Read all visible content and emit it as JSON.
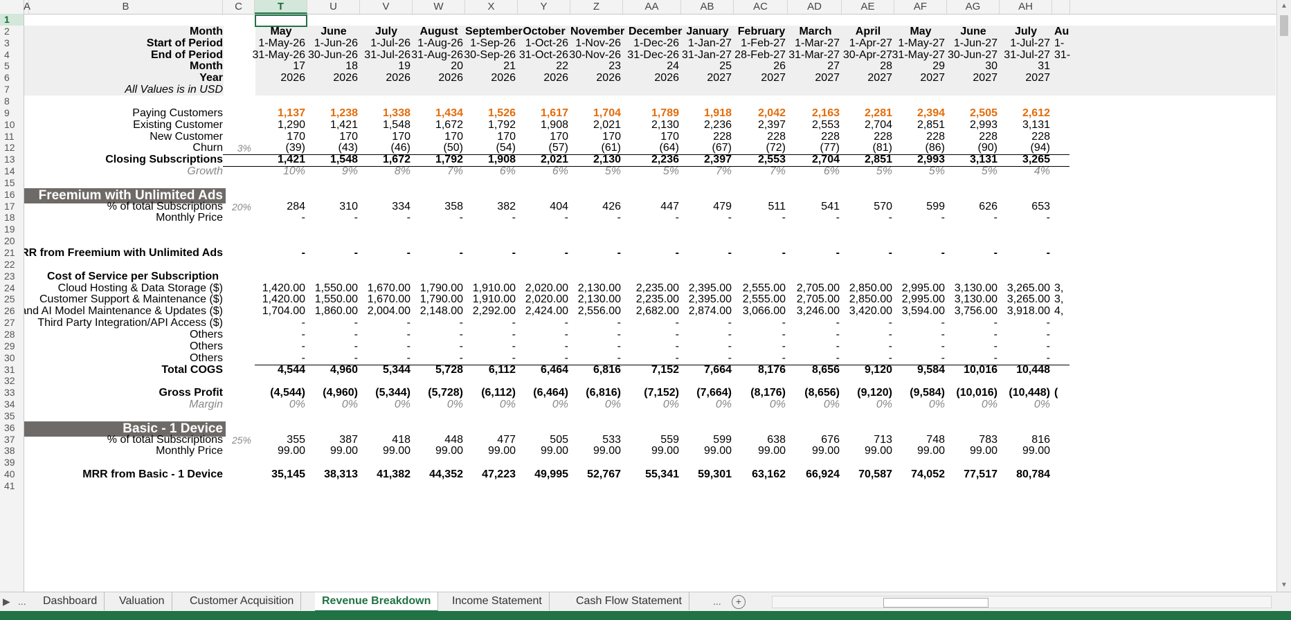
{
  "sheet": {
    "col_letters": [
      "A",
      "B",
      "C",
      "T",
      "U",
      "V",
      "W",
      "X",
      "Y",
      "Z",
      "AA",
      "AB",
      "AC",
      "AD",
      "AE",
      "AF",
      "AG",
      "AH"
    ],
    "selected_cell": "T1",
    "header_rows": {
      "r2": {
        "label": "Month",
        "values": [
          "May",
          "June",
          "July",
          "August",
          "September",
          "October",
          "November",
          "December",
          "January",
          "February",
          "March",
          "April",
          "May",
          "June",
          "July"
        ]
      },
      "r3": {
        "label": "Start of Period",
        "values": [
          "1-May-26",
          "1-Jun-26",
          "1-Jul-26",
          "1-Aug-26",
          "1-Sep-26",
          "1-Oct-26",
          "1-Nov-26",
          "1-Dec-26",
          "1-Jan-27",
          "1-Feb-27",
          "1-Mar-27",
          "1-Apr-27",
          "1-May-27",
          "1-Jun-27",
          "1-Jul-27"
        ]
      },
      "r4": {
        "label": "End of Period",
        "values": [
          "31-May-26",
          "30-Jun-26",
          "31-Jul-26",
          "31-Aug-26",
          "30-Sep-26",
          "31-Oct-26",
          "30-Nov-26",
          "31-Dec-26",
          "31-Jan-27",
          "28-Feb-27",
          "31-Mar-27",
          "30-Apr-27",
          "31-May-27",
          "30-Jun-27",
          "31-Jul-27"
        ]
      },
      "r5": {
        "label": "Month",
        "values": [
          "17",
          "18",
          "19",
          "20",
          "21",
          "22",
          "23",
          "24",
          "25",
          "26",
          "27",
          "28",
          "29",
          "30",
          "31"
        ]
      },
      "r6": {
        "label": "Year",
        "values": [
          "2026",
          "2026",
          "2026",
          "2026",
          "2026",
          "2026",
          "2026",
          "2026",
          "2027",
          "2027",
          "2027",
          "2027",
          "2027",
          "2027",
          "2027"
        ]
      },
      "r7": {
        "label": "All Values is in USD"
      }
    },
    "rows": {
      "r9": {
        "label": "Paying Customers",
        "values": [
          "1,137",
          "1,238",
          "1,338",
          "1,434",
          "1,526",
          "1,617",
          "1,704",
          "1,789",
          "1,918",
          "2,042",
          "2,163",
          "2,281",
          "2,394",
          "2,505",
          "2,612"
        ]
      },
      "r10": {
        "label": "Existing Customer",
        "values": [
          "1,290",
          "1,421",
          "1,548",
          "1,672",
          "1,792",
          "1,908",
          "2,021",
          "2,130",
          "2,236",
          "2,397",
          "2,553",
          "2,704",
          "2,851",
          "2,993",
          "3,131"
        ]
      },
      "r11": {
        "label": "New Customer",
        "values": [
          "170",
          "170",
          "170",
          "170",
          "170",
          "170",
          "170",
          "170",
          "228",
          "228",
          "228",
          "228",
          "228",
          "228",
          "228"
        ]
      },
      "r12": {
        "label": "Churn",
        "pct": "3%",
        "values": [
          "(39)",
          "(43)",
          "(46)",
          "(50)",
          "(54)",
          "(57)",
          "(61)",
          "(64)",
          "(67)",
          "(72)",
          "(77)",
          "(81)",
          "(86)",
          "(90)",
          "(94)"
        ]
      },
      "r13": {
        "label": "Closing Subscriptions",
        "values": [
          "1,421",
          "1,548",
          "1,672",
          "1,792",
          "1,908",
          "2,021",
          "2,130",
          "2,236",
          "2,397",
          "2,553",
          "2,704",
          "2,851",
          "2,993",
          "3,131",
          "3,265"
        ]
      },
      "r14": {
        "label": "Growth",
        "values": [
          "10%",
          "9%",
          "8%",
          "7%",
          "6%",
          "6%",
          "5%",
          "5%",
          "7%",
          "7%",
          "6%",
          "5%",
          "5%",
          "5%",
          "4%"
        ]
      },
      "r16": {
        "label": "Freemium with Unlimited Ads"
      },
      "r17": {
        "label": "% of  total Subscriptions",
        "pct": "20%",
        "values": [
          "284",
          "310",
          "334",
          "358",
          "382",
          "404",
          "426",
          "447",
          "479",
          "511",
          "541",
          "570",
          "599",
          "626",
          "653"
        ]
      },
      "r18": {
        "label": "Monthly Price",
        "values": [
          "-",
          "-",
          "-",
          "-",
          "-",
          "-",
          "-",
          "-",
          "-",
          "-",
          "-",
          "-",
          "-",
          "-",
          "-"
        ]
      },
      "r21": {
        "label": "MRR from Freemium with Unlimited Ads",
        "values": [
          "-",
          "-",
          "-",
          "-",
          "-",
          "-",
          "-",
          "-",
          "-",
          "-",
          "-",
          "-",
          "-",
          "-",
          "-"
        ]
      },
      "r23": {
        "label": "Cost of Service per Subscription"
      },
      "r24": {
        "label": "Cloud Hosting & Data Storage ($)",
        "values": [
          "1,420.00",
          "1,550.00",
          "1,670.00",
          "1,790.00",
          "1,910.00",
          "2,020.00",
          "2,130.00",
          "2,235.00",
          "2,395.00",
          "2,555.00",
          "2,705.00",
          "2,850.00",
          "2,995.00",
          "3,130.00",
          "3,265.00"
        ]
      },
      "r25": {
        "label": "Customer Support & Maintenance ($)",
        "values": [
          "1,420.00",
          "1,550.00",
          "1,670.00",
          "1,790.00",
          "1,910.00",
          "2,020.00",
          "2,130.00",
          "2,235.00",
          "2,395.00",
          "2,555.00",
          "2,705.00",
          "2,850.00",
          "2,995.00",
          "3,130.00",
          "3,265.00"
        ]
      },
      "r26": {
        "label": "Tech and AI Model Maintenance & Updates ($)",
        "values": [
          "1,704.00",
          "1,860.00",
          "2,004.00",
          "2,148.00",
          "2,292.00",
          "2,424.00",
          "2,556.00",
          "2,682.00",
          "2,874.00",
          "3,066.00",
          "3,246.00",
          "3,420.00",
          "3,594.00",
          "3,756.00",
          "3,918.00"
        ]
      },
      "r27": {
        "label": "Third Party Integration/API Access ($)",
        "values": [
          "-",
          "-",
          "-",
          "-",
          "-",
          "-",
          "-",
          "-",
          "-",
          "-",
          "-",
          "-",
          "-",
          "-",
          "-"
        ]
      },
      "r28": {
        "label": "Others",
        "values": [
          "-",
          "-",
          "-",
          "-",
          "-",
          "-",
          "-",
          "-",
          "-",
          "-",
          "-",
          "-",
          "-",
          "-",
          "-"
        ]
      },
      "r29": {
        "label": "Others",
        "values": [
          "-",
          "-",
          "-",
          "-",
          "-",
          "-",
          "-",
          "-",
          "-",
          "-",
          "-",
          "-",
          "-",
          "-",
          "-"
        ]
      },
      "r30": {
        "label": "Others",
        "values": [
          "-",
          "-",
          "-",
          "-",
          "-",
          "-",
          "-",
          "-",
          "-",
          "-",
          "-",
          "-",
          "-",
          "-",
          "-"
        ]
      },
      "r31": {
        "label": "Total COGS",
        "values": [
          "4,544",
          "4,960",
          "5,344",
          "5,728",
          "6,112",
          "6,464",
          "6,816",
          "7,152",
          "7,664",
          "8,176",
          "8,656",
          "9,120",
          "9,584",
          "10,016",
          "10,448"
        ]
      },
      "r33": {
        "label": "Gross Profit",
        "values": [
          "(4,544)",
          "(4,960)",
          "(5,344)",
          "(5,728)",
          "(6,112)",
          "(6,464)",
          "(6,816)",
          "(7,152)",
          "(7,664)",
          "(8,176)",
          "(8,656)",
          "(9,120)",
          "(9,584)",
          "(10,016)",
          "(10,448)"
        ]
      },
      "r34": {
        "label": "Margin",
        "values": [
          "0%",
          "0%",
          "0%",
          "0%",
          "0%",
          "0%",
          "0%",
          "0%",
          "0%",
          "0%",
          "0%",
          "0%",
          "0%",
          "0%",
          "0%"
        ]
      },
      "r36": {
        "label": "Basic - 1 Device"
      },
      "r37": {
        "label": "% of  total Subscriptions",
        "pct": "25%",
        "values": [
          "355",
          "387",
          "418",
          "448",
          "477",
          "505",
          "533",
          "559",
          "599",
          "638",
          "676",
          "713",
          "748",
          "783",
          "816"
        ]
      },
      "r38": {
        "label": "Monthly Price",
        "values": [
          "99.00",
          "99.00",
          "99.00",
          "99.00",
          "99.00",
          "99.00",
          "99.00",
          "99.00",
          "99.00",
          "99.00",
          "99.00",
          "99.00",
          "99.00",
          "99.00",
          "99.00"
        ]
      },
      "r40": {
        "label": "MRR from Basic - 1 Device",
        "values": [
          "35,145",
          "38,313",
          "41,382",
          "44,352",
          "47,223",
          "49,995",
          "52,767",
          "55,341",
          "59,301",
          "63,162",
          "66,924",
          "70,587",
          "74,052",
          "77,517",
          "80,784"
        ]
      }
    },
    "overflow": {
      "r2": "Au",
      "r3": "1-",
      "r4": "31-",
      "r24": "3,",
      "r25": "3,",
      "r26": "4,",
      "r33": "("
    }
  },
  "tabs": {
    "ellipsis_left": "...",
    "items": [
      "Dashboard",
      "Valuation",
      "Customer Acquisition",
      "Revenue Breakdown",
      "Income Statement",
      "Cash Flow Statement"
    ],
    "active": "Revenue Breakdown",
    "ellipsis_right": "...",
    "add_symbol": "+"
  },
  "colors": {
    "accent": "#217346",
    "section_bg": "#6e6a67",
    "orange": "#e36c0a",
    "header_band": "#efefef"
  }
}
